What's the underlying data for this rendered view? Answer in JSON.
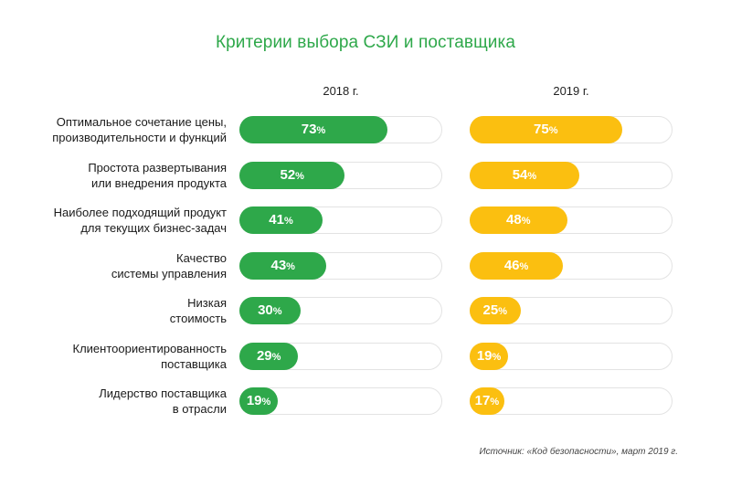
{
  "chart_data": {
    "type": "bar",
    "title": "Критерии выбора СЗИ и поставщика",
    "categories": [
      [
        "Оптимальное сочетание цены,",
        "производительности и функций"
      ],
      [
        "Простота развертывания",
        "или внедрения продукта"
      ],
      [
        "Наиболее подходящий продукт",
        "для текущих бизнес-задач"
      ],
      [
        "Качество",
        "системы управления"
      ],
      [
        "Низкая",
        "стоимость"
      ],
      [
        "Клиентоориентированность",
        "поставщика"
      ],
      [
        "Лидерство поставщика",
        "в отрасли"
      ]
    ],
    "series": [
      {
        "name": "2018 г.",
        "color": "#2ea84a",
        "values": [
          73,
          52,
          41,
          43,
          30,
          29,
          19
        ]
      },
      {
        "name": "2019 г.",
        "color": "#fbbf10",
        "values": [
          75,
          54,
          48,
          46,
          25,
          19,
          17
        ]
      }
    ],
    "unit": "%",
    "xlim": [
      0,
      100
    ],
    "source": "Источник: «Код безопасности», март 2019 г."
  }
}
